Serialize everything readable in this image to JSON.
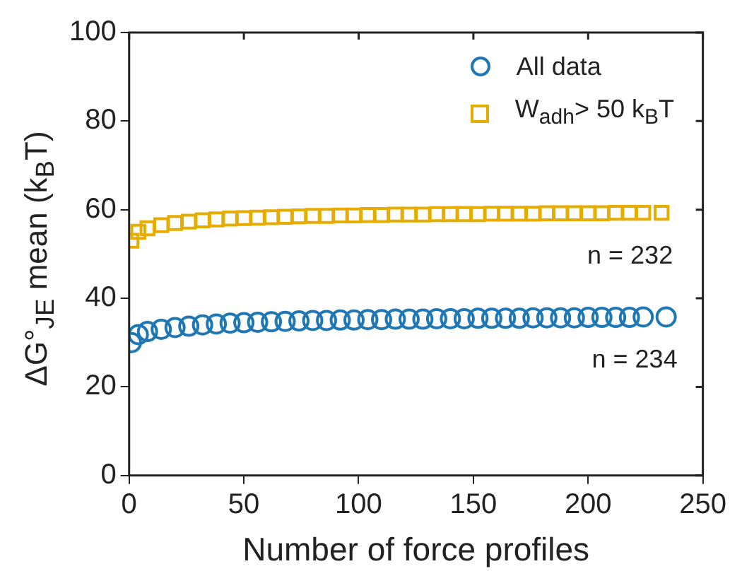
{
  "chart_data": {
    "type": "scatter",
    "xlabel": "Number of force profiles",
    "ylabel": "ΔG°$_{JE}$ mean (k$_{B}$T)",
    "xlim": [
      0,
      250
    ],
    "xticks": [
      0,
      50,
      100,
      150,
      200,
      250
    ],
    "ylim": [
      0,
      100
    ],
    "yticks": [
      0,
      20,
      40,
      60,
      80,
      100
    ],
    "grid": false,
    "legend": "top right",
    "series": [
      {
        "name": "All data",
        "color": "#1f77b4",
        "marker": "circle",
        "x": [
          1,
          4,
          8,
          14,
          20,
          26,
          32,
          38,
          44,
          50,
          56,
          62,
          68,
          74,
          80,
          86,
          92,
          98,
          104,
          110,
          116,
          122,
          128,
          134,
          140,
          146,
          152,
          158,
          164,
          170,
          176,
          182,
          188,
          194,
          200,
          206,
          212,
          218,
          224,
          234
        ],
        "values": [
          30.0,
          31.8,
          32.5,
          33.0,
          33.4,
          33.7,
          34.0,
          34.2,
          34.4,
          34.5,
          34.6,
          34.7,
          34.8,
          34.9,
          35.0,
          35.0,
          35.1,
          35.1,
          35.2,
          35.2,
          35.3,
          35.3,
          35.3,
          35.4,
          35.4,
          35.4,
          35.5,
          35.5,
          35.5,
          35.5,
          35.6,
          35.6,
          35.6,
          35.6,
          35.7,
          35.7,
          35.7,
          35.7,
          35.8,
          35.8
        ]
      },
      {
        "name": "W$_{adh}$> 50 k$_{B}$T",
        "color": "#e6ac00",
        "marker": "square",
        "x": [
          1,
          4,
          8,
          14,
          20,
          26,
          32,
          38,
          44,
          50,
          56,
          62,
          68,
          74,
          80,
          86,
          92,
          98,
          104,
          110,
          116,
          122,
          128,
          134,
          140,
          146,
          152,
          158,
          164,
          170,
          176,
          182,
          188,
          194,
          200,
          206,
          212,
          218,
          224,
          232
        ],
        "values": [
          53.0,
          55.0,
          55.8,
          56.5,
          57.0,
          57.3,
          57.6,
          57.8,
          58.0,
          58.1,
          58.2,
          58.3,
          58.4,
          58.5,
          58.6,
          58.6,
          58.7,
          58.7,
          58.8,
          58.8,
          58.9,
          58.9,
          58.9,
          59.0,
          59.0,
          59.0,
          59.0,
          59.1,
          59.1,
          59.1,
          59.1,
          59.2,
          59.2,
          59.2,
          59.2,
          59.2,
          59.3,
          59.3,
          59.3,
          59.3
        ]
      }
    ],
    "annotations": [
      "n = 232",
      "n = 234"
    ]
  }
}
